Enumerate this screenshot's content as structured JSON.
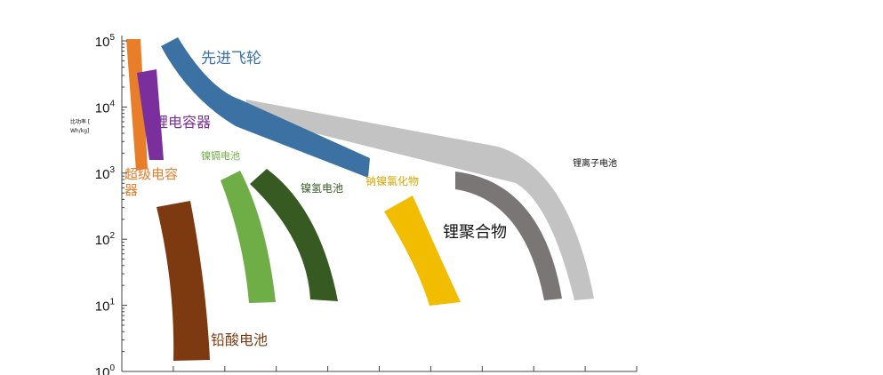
{
  "chart_data": {
    "type": "area",
    "title": "",
    "xlabel": "",
    "ylabel_lines": [
      "比功率 [",
      "Wh/kg]"
    ],
    "y_scale": "log",
    "ylim": [
      1,
      100000
    ],
    "y_ticks": [
      {
        "value": 1,
        "base": "10",
        "exp": "0"
      },
      {
        "value": 10,
        "base": "10",
        "exp": "1"
      },
      {
        "value": 100,
        "base": "10",
        "exp": "2"
      },
      {
        "value": 1000,
        "base": "10",
        "exp": "3"
      },
      {
        "value": 10000,
        "base": "10",
        "exp": "4"
      },
      {
        "value": 100000,
        "base": "10",
        "exp": "5"
      }
    ],
    "x_tick_count": 10,
    "grid": false,
    "series": [
      {
        "name": "先进飞轮",
        "color": "#3b72a3"
      },
      {
        "name": "锂电容器",
        "color": "#7a2f9c"
      },
      {
        "name": "超级电容器",
        "color": "#e87d2a"
      },
      {
        "name": "镍镉电池",
        "color": "#6fae47"
      },
      {
        "name": "镍氢电池",
        "color": "#375a23"
      },
      {
        "name": "钠镍氯化物",
        "color": "#f2bd00"
      },
      {
        "name": "锂聚合物",
        "color": "#7a7676"
      },
      {
        "name": "锂离子电池",
        "color": "#c3c3c3"
      },
      {
        "name": "铅酸电池",
        "color": "#7d3a10"
      }
    ]
  }
}
